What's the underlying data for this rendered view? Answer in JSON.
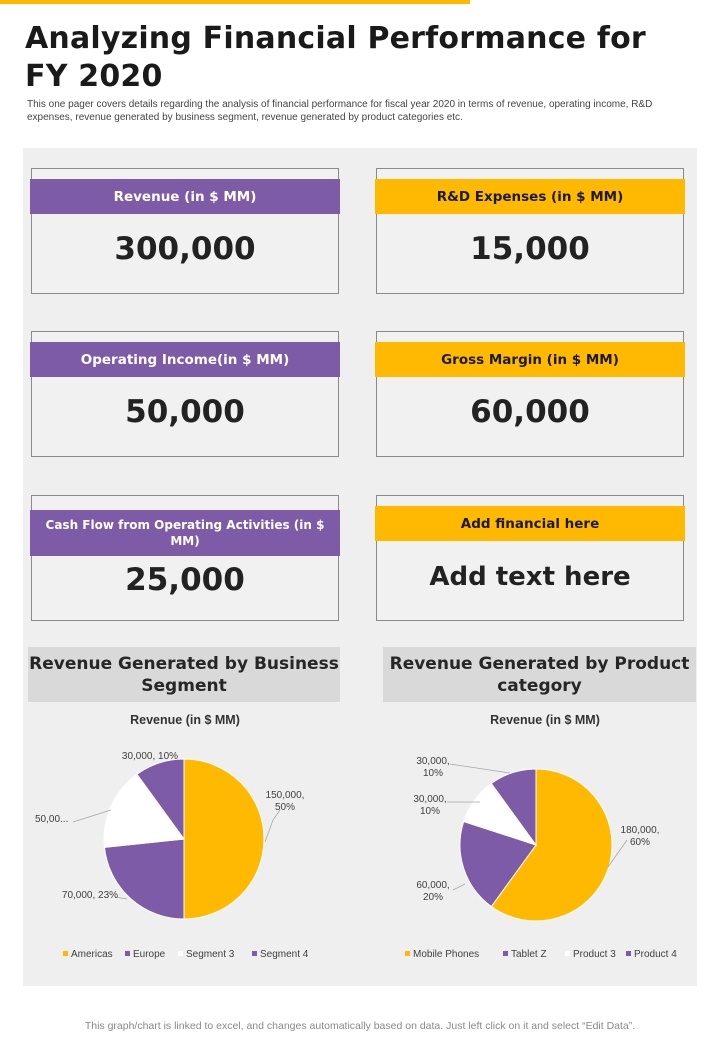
{
  "colors": {
    "accent": "#FFB900",
    "purple": "#7D5BA6",
    "white": "#FFFFFF",
    "panel": "#EFEFEF"
  },
  "header": {
    "title": "Analyzing Financial Performance for FY 2020",
    "subtitle": "This one pager covers details regarding the analysis of financial performance for fiscal year 2020 in terms of revenue, operating income, R&D expenses, revenue generated by business segment, revenue generated by product categories etc."
  },
  "kpis": [
    {
      "label": "Revenue (in $ MM)",
      "value": "300,000"
    },
    {
      "label": "R&D Expenses (in $ MM)",
      "value": "15,000"
    },
    {
      "label": "Operating Income(in $ MM)",
      "value": "50,000"
    },
    {
      "label": "Gross Margin (in $ MM)",
      "value": "60,000"
    },
    {
      "label": "Cash Flow from Operating Activities (in $ MM)",
      "value": "25,000"
    },
    {
      "label": "Add financial here",
      "value": "Add text here"
    }
  ],
  "sections": {
    "business_segment": "Revenue Generated by Business Segment",
    "product_category": "Revenue Generated by Product category"
  },
  "chart_data": [
    {
      "type": "pie",
      "title": "Revenue (in $ MM)",
      "categories": [
        "Americas",
        "Europe",
        "Segment 3",
        "Segment 4"
      ],
      "values": [
        150000,
        70000,
        50000,
        30000
      ],
      "percent": [
        50,
        23,
        17,
        10
      ],
      "colors": [
        "#FFB900",
        "#7D5BA6",
        "#FFFFFF",
        "#7D5BA6"
      ],
      "data_labels": [
        "150,000, 50%",
        "70,000, 23%",
        "50,00...",
        "30,000, 10%"
      ],
      "legend": "bottom"
    },
    {
      "type": "pie",
      "title": "Revenue (in $ MM)",
      "categories": [
        "Mobile Phones",
        "Tablet Z",
        "Product 3",
        "Product 4"
      ],
      "values": [
        180000,
        60000,
        30000,
        30000
      ],
      "percent": [
        60,
        20,
        10,
        10
      ],
      "colors": [
        "#FFB900",
        "#7D5BA6",
        "#FFFFFF",
        "#7D5BA6"
      ],
      "data_labels": [
        "180,000, 60%",
        "60,000, 20%",
        "30,000, 10%",
        "30,000, 10%"
      ],
      "legend": "bottom"
    }
  ],
  "footer": "This graph/chart is linked to excel, and changes automatically based on data. Just left click on it and select “Edit Data”."
}
